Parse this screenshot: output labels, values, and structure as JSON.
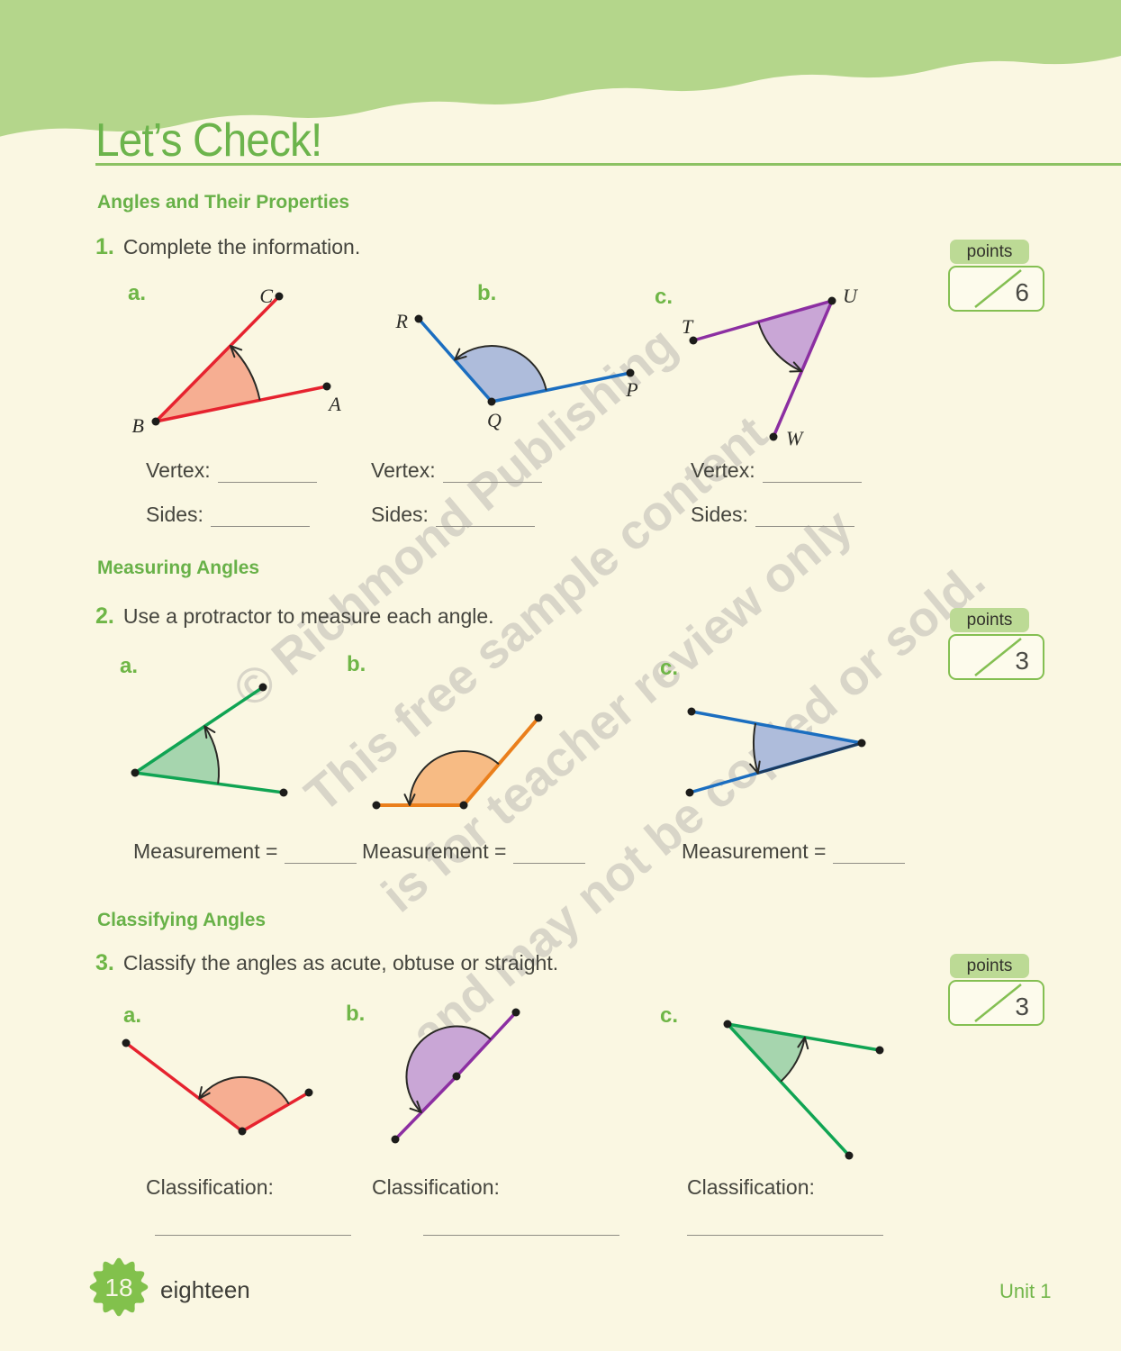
{
  "header": {
    "title": "Let’s Check!"
  },
  "watermark": {
    "lines": [
      "© Richmond Publishing",
      "This free sample content",
      "is for teacher review only",
      "and may not be copied or sold."
    ]
  },
  "points_box": {
    "label": "points"
  },
  "colors": {
    "band_green": "#b4d68b",
    "accent_green": "#6cb44c",
    "heading_green": "#68b148",
    "points_border": "#84bf52",
    "points_pill_bg": "#bcda95",
    "body_text": "#45453e",
    "watermark_gray": "#d8d5c8",
    "red": "#e6232f",
    "red_fill": "#f6ae92",
    "blue": "#1b6ec0",
    "blue_fill": "#aebcdb",
    "navy": "#1c3a5e",
    "purple": "#8c2fa2",
    "purple_fill": "#c9a6d6",
    "green": "#10a453",
    "green_fill": "#a6d5ae",
    "orange": "#ea7f1c",
    "orange_fill": "#f7bb84"
  },
  "sections": {
    "properties": {
      "heading": "Angles and Their Properties",
      "number": "1.",
      "instruction": "Complete the information.",
      "points_value": "6",
      "vertex_label": "Vertex:",
      "sides_label": "Sides:",
      "items": [
        {
          "label": "a.",
          "vertex": "B",
          "end1": "C",
          "end2": "A"
        },
        {
          "label": "b.",
          "vertex": "Q",
          "end1": "R",
          "end2": "P"
        },
        {
          "label": "c.",
          "vertex": "U",
          "end1": "T",
          "end2": "W"
        }
      ]
    },
    "measuring": {
      "heading": "Measuring Angles",
      "number": "2.",
      "instruction": "Use a protractor to measure each angle.",
      "points_value": "3",
      "measurement_label": "Measurement =",
      "items": [
        {
          "label": "a."
        },
        {
          "label": "b."
        },
        {
          "label": "c."
        }
      ]
    },
    "classifying": {
      "heading": "Classifying Angles",
      "number": "3.",
      "instruction": "Classify the angles as acute, obtuse or straight.",
      "points_value": "3",
      "classification_label": "Classification:",
      "items": [
        {
          "label": "a."
        },
        {
          "label": "b."
        },
        {
          "label": "c."
        }
      ]
    }
  },
  "footer": {
    "page_number": "18",
    "page_word": "eighteen",
    "unit": "Unit 1"
  }
}
